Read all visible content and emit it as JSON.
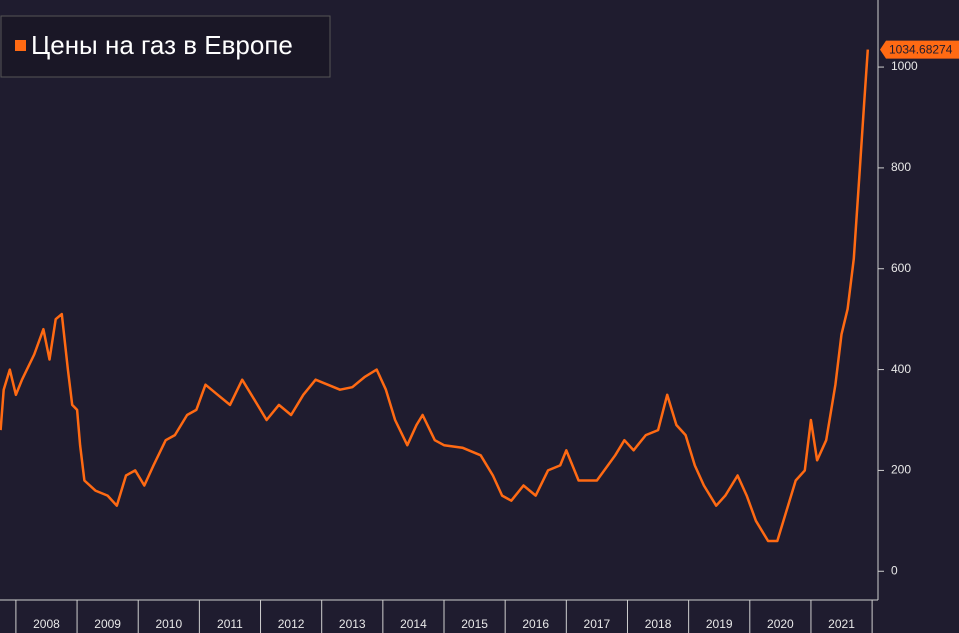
{
  "chart_data": {
    "type": "line",
    "series": [
      {
        "name": "Цены на газ в Европе",
        "color": "#ff6a13",
        "x": [
          2007.75,
          2007.8,
          2007.9,
          2008.0,
          2008.1,
          2008.3,
          2008.45,
          2008.55,
          2008.65,
          2008.75,
          2008.85,
          2008.92,
          2009.0,
          2009.05,
          2009.12,
          2009.3,
          2009.5,
          2009.65,
          2009.8,
          2009.95,
          2010.1,
          2010.25,
          2010.45,
          2010.6,
          2010.8,
          2010.95,
          2011.1,
          2011.3,
          2011.5,
          2011.7,
          2011.85,
          2011.95,
          2012.1,
          2012.3,
          2012.5,
          2012.7,
          2012.9,
          2013.1,
          2013.3,
          2013.5,
          2013.7,
          2013.9,
          2014.05,
          2014.2,
          2014.4,
          2014.55,
          2014.65,
          2014.85,
          2015.0,
          2015.3,
          2015.6,
          2015.8,
          2015.95,
          2016.1,
          2016.3,
          2016.5,
          2016.7,
          2016.9,
          2017.0,
          2017.2,
          2017.5,
          2017.8,
          2017.95,
          2018.1,
          2018.3,
          2018.5,
          2018.65,
          2018.8,
          2018.95,
          2019.1,
          2019.25,
          2019.45,
          2019.6,
          2019.8,
          2019.95,
          2020.1,
          2020.3,
          2020.45,
          2020.6,
          2020.75,
          2020.9,
          2021.0,
          2021.1,
          2021.25,
          2021.4,
          2021.5,
          2021.6,
          2021.7,
          2021.8,
          2021.87,
          2021.93
        ],
        "values": [
          280,
          360,
          400,
          350,
          380,
          430,
          480,
          420,
          500,
          510,
          400,
          330,
          320,
          250,
          180,
          160,
          150,
          130,
          190,
          200,
          170,
          210,
          260,
          270,
          310,
          320,
          370,
          350,
          330,
          380,
          350,
          330,
          300,
          330,
          310,
          350,
          380,
          370,
          360,
          365,
          385,
          400,
          360,
          300,
          250,
          290,
          310,
          260,
          250,
          245,
          230,
          190,
          150,
          140,
          170,
          150,
          200,
          210,
          240,
          180,
          180,
          230,
          260,
          240,
          270,
          280,
          350,
          290,
          270,
          210,
          170,
          130,
          150,
          190,
          150,
          100,
          60,
          60,
          120,
          180,
          200,
          300,
          220,
          260,
          370,
          470,
          520,
          620,
          800,
          930,
          1034.68274
        ]
      }
    ],
    "xlim": [
      2007.74,
      2022.08
    ],
    "xticks": [
      {
        "value": 2008.5,
        "label": "2008"
      },
      {
        "value": 2009.5,
        "label": "2009"
      },
      {
        "value": 2010.5,
        "label": "2010"
      },
      {
        "value": 2011.5,
        "label": "2011"
      },
      {
        "value": 2012.5,
        "label": "2012"
      },
      {
        "value": 2013.5,
        "label": "2013"
      },
      {
        "value": 2014.5,
        "label": "2014"
      },
      {
        "value": 2015.5,
        "label": "2015"
      },
      {
        "value": 2016.5,
        "label": "2016"
      },
      {
        "value": 2017.5,
        "label": "2017"
      },
      {
        "value": 2018.5,
        "label": "2018"
      },
      {
        "value": 2019.5,
        "label": "2019"
      },
      {
        "value": 2020.5,
        "label": "2020"
      },
      {
        "value": 2021.5,
        "label": "2021"
      }
    ],
    "ylim": [
      -57,
      1133
    ],
    "yticks": [
      0,
      200,
      400,
      600,
      800,
      1000
    ],
    "grid": false,
    "legend": "top-left"
  }
}
